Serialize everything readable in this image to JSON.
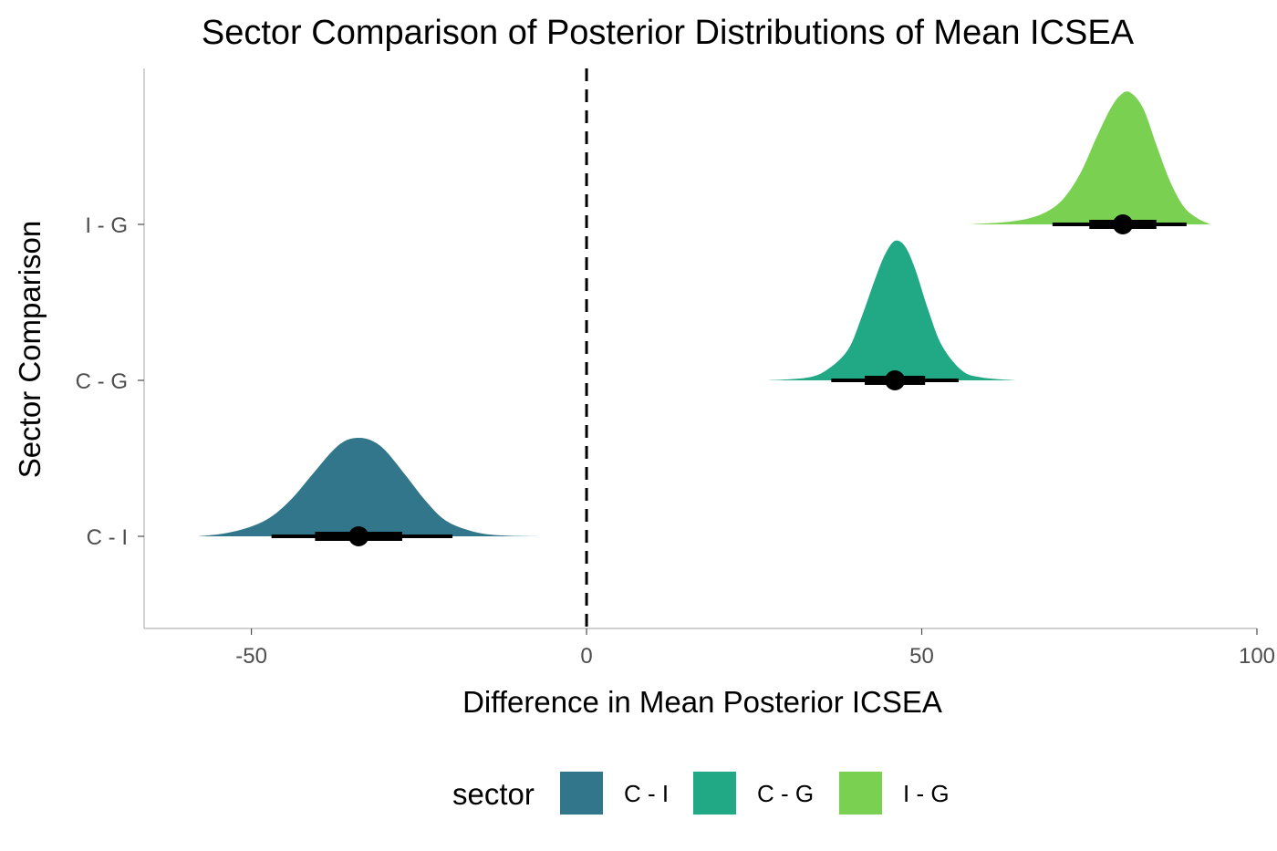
{
  "chart_data": {
    "type": "area",
    "title": "Sector Comparison of Posterior Distributions of Mean ICSEA",
    "xlabel": "Difference in Mean Posterior ICSEA",
    "ylabel": "Sector Comparison",
    "xlim": [
      -66,
      100
    ],
    "x_ticks": [
      -50,
      0,
      50,
      100
    ],
    "x_tick_labels": [
      "-50",
      "0",
      "50",
      "100"
    ],
    "categories": [
      "C - I",
      "C - G",
      "I - G"
    ],
    "reference_line": {
      "x": 0,
      "style": "dashed"
    },
    "grid": false,
    "legend": {
      "title": "sector",
      "position": "bottom",
      "entries": [
        "C - I",
        "C - G",
        "I - G"
      ]
    },
    "series": [
      {
        "name": "C - I",
        "color": "#31768A",
        "median": -34,
        "interval_66": [
          -40.5,
          -27.5
        ],
        "interval_95": [
          -47,
          -20
        ],
        "density_x": [
          -58,
          -54,
          -50,
          -47,
          -44,
          -41,
          -38,
          -36,
          -34,
          -32,
          -30,
          -27,
          -24,
          -21,
          -17,
          -13,
          -7
        ],
        "density_y": [
          0,
          0.03,
          0.1,
          0.2,
          0.38,
          0.62,
          0.86,
          0.97,
          1.0,
          0.97,
          0.87,
          0.62,
          0.36,
          0.16,
          0.05,
          0.01,
          0
        ]
      },
      {
        "name": "C - G",
        "color": "#21A884",
        "median": 46,
        "interval_66": [
          41.5,
          50.5
        ],
        "interval_95": [
          36.5,
          55.5
        ],
        "density_x": [
          27,
          33,
          36,
          39,
          41,
          43,
          44.5,
          46,
          47.5,
          49,
          51,
          53,
          56,
          59,
          64
        ],
        "density_y": [
          0,
          0.02,
          0.08,
          0.22,
          0.45,
          0.72,
          0.9,
          1.0,
          0.96,
          0.8,
          0.5,
          0.25,
          0.07,
          0.02,
          0
        ]
      },
      {
        "name": "I - G",
        "color": "#7AD151",
        "median": 80,
        "interval_66": [
          75,
          85
        ],
        "interval_95": [
          69.5,
          89.5
        ],
        "density_x": [
          57,
          63,
          67,
          70,
          72,
          74,
          76,
          78,
          79.5,
          81,
          83,
          85,
          87,
          89,
          91,
          93
        ],
        "density_y": [
          0,
          0.02,
          0.06,
          0.14,
          0.25,
          0.42,
          0.65,
          0.86,
          0.97,
          1.0,
          0.88,
          0.6,
          0.33,
          0.14,
          0.05,
          0
        ]
      }
    ]
  }
}
